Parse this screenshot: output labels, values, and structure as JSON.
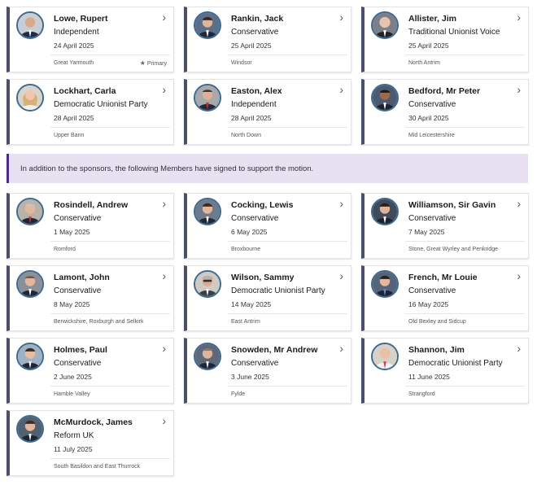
{
  "sponsors": [
    {
      "name": "Lowe, Rupert",
      "party": "Independent",
      "date": "24 April 2025",
      "constituency": "Great Yarmouth",
      "primary": "Primary",
      "avatar_icon": "member-portrait"
    },
    {
      "name": "Rankin, Jack",
      "party": "Conservative",
      "date": "25 April 2025",
      "constituency": "Windsor",
      "avatar_icon": "member-portrait"
    },
    {
      "name": "Allister, Jim",
      "party": "Traditional Unionist Voice",
      "date": "25 April 2025",
      "constituency": "North Antrim",
      "avatar_icon": "member-portrait"
    },
    {
      "name": "Lockhart, Carla",
      "party": "Democratic Unionist Party",
      "date": "28 April 2025",
      "constituency": "Upper Bann",
      "avatar_icon": "member-portrait"
    },
    {
      "name": "Easton, Alex",
      "party": "Independent",
      "date": "28 April 2025",
      "constituency": "North Down",
      "avatar_icon": "member-portrait"
    },
    {
      "name": "Bedford, Mr Peter",
      "party": "Conservative",
      "date": "30 April 2025",
      "constituency": "Mid Leicestershire",
      "avatar_icon": "member-portrait"
    }
  ],
  "banner": {
    "text": "In addition to the sponsors, the following Members have signed to support the motion."
  },
  "supporters": [
    {
      "name": "Rosindell, Andrew",
      "party": "Conservative",
      "date": "1 May 2025",
      "constituency": "Romford"
    },
    {
      "name": "Cocking, Lewis",
      "party": "Conservative",
      "date": "6 May 2025",
      "constituency": "Broxbourne"
    },
    {
      "name": "Williamson, Sir Gavin",
      "party": "Conservative",
      "date": "7 May 2025",
      "constituency": "Stone, Great Wyrley and Penkridge"
    },
    {
      "name": "Lamont, John",
      "party": "Conservative",
      "date": "8 May 2025",
      "constituency": "Berwickshire, Roxburgh and Selkirk"
    },
    {
      "name": "Wilson, Sammy",
      "party": "Democratic Unionist Party",
      "date": "14 May 2025",
      "constituency": "East Antrim"
    },
    {
      "name": "French, Mr Louie",
      "party": "Conservative",
      "date": "16 May 2025",
      "constituency": "Old Bexley and Sidcup"
    },
    {
      "name": "Holmes, Paul",
      "party": "Conservative",
      "date": "2 June 2025",
      "constituency": "Hamble Valley"
    },
    {
      "name": "Snowden, Mr Andrew",
      "party": "Conservative",
      "date": "3 June 2025",
      "constituency": "Fylde"
    },
    {
      "name": "Shannon, Jim",
      "party": "Democratic Unionist Party",
      "date": "11 June 2025",
      "constituency": "Strangford"
    },
    {
      "name": "McMurdock, James",
      "party": "Reform UK",
      "date": "11 July 2025",
      "constituency": "South Basildon and East Thurrock"
    }
  ],
  "icons": {
    "chevron": "chevron-right-icon",
    "star": "star-icon",
    "avatar": "member-portrait"
  },
  "colors": {
    "card_accent": "#4b4f6a",
    "banner_bg": "#e7e1f1",
    "banner_accent": "#4d2c86",
    "avatar_ring": "#3d6a8f"
  }
}
